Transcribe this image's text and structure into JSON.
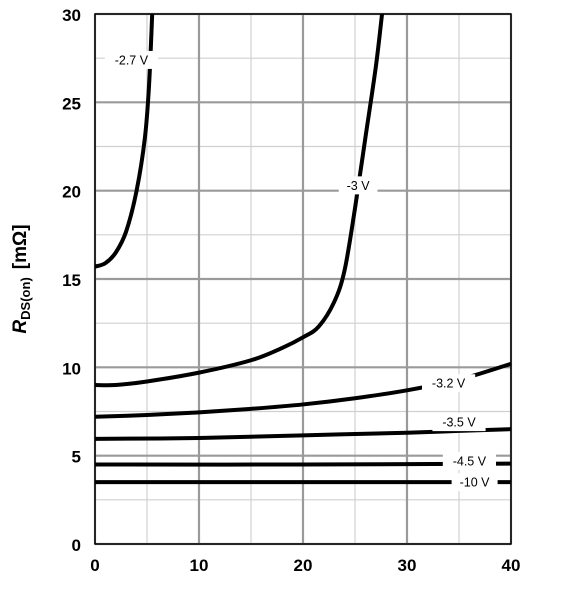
{
  "chart_data": {
    "type": "line",
    "title": "",
    "xlabel": "",
    "ylabel": {
      "main": "R",
      "subscript": "DS(on)",
      "unit": "[mΩ]"
    },
    "xlim": [
      0,
      40
    ],
    "ylim": [
      0,
      30
    ],
    "x_ticks": [
      0,
      10,
      20,
      30,
      40
    ],
    "y_ticks": [
      0,
      5,
      10,
      15,
      20,
      25,
      30
    ],
    "x_minor_step": 5,
    "y_minor_step": 2.5,
    "grid": true,
    "legend": "inline labels",
    "line_color": "#000000",
    "grid_major_color": "#9a9a9a",
    "grid_minor_color": "#d0d0d0",
    "series": [
      {
        "name": "-2.7 V",
        "label_at": [
          3.5,
          27.4
        ],
        "points": [
          [
            0,
            15.7
          ],
          [
            1,
            15.9
          ],
          [
            2,
            16.5
          ],
          [
            3,
            17.7
          ],
          [
            4,
            20.0
          ],
          [
            4.8,
            23.0
          ],
          [
            5.2,
            26.0
          ],
          [
            5.5,
            30.0
          ]
        ]
      },
      {
        "name": "-3 V",
        "label_at": [
          25.3,
          20.3
        ],
        "points": [
          [
            0,
            9.0
          ],
          [
            2,
            9.0
          ],
          [
            5,
            9.2
          ],
          [
            10,
            9.7
          ],
          [
            15,
            10.4
          ],
          [
            18,
            11.1
          ],
          [
            20,
            11.7
          ],
          [
            21.5,
            12.3
          ],
          [
            23,
            13.7
          ],
          [
            24,
            15.5
          ],
          [
            25,
            19.0
          ],
          [
            26,
            23.0
          ],
          [
            27,
            27.0
          ],
          [
            27.6,
            30.0
          ]
        ]
      },
      {
        "name": "-3.2 V",
        "label_at": [
          34,
          9.1
        ],
        "points": [
          [
            0,
            7.2
          ],
          [
            5,
            7.3
          ],
          [
            10,
            7.45
          ],
          [
            15,
            7.65
          ],
          [
            20,
            7.9
          ],
          [
            25,
            8.25
          ],
          [
            30,
            8.7
          ],
          [
            35,
            9.3
          ],
          [
            40,
            10.2
          ]
        ]
      },
      {
        "name": "-3.5 V",
        "label_at": [
          35,
          6.9
        ],
        "points": [
          [
            0,
            5.95
          ],
          [
            10,
            6.0
          ],
          [
            20,
            6.15
          ],
          [
            30,
            6.3
          ],
          [
            35,
            6.4
          ],
          [
            40,
            6.5
          ]
        ]
      },
      {
        "name": "-4.5 V",
        "label_at": [
          36,
          4.7
        ],
        "points": [
          [
            0,
            4.5
          ],
          [
            20,
            4.5
          ],
          [
            40,
            4.55
          ]
        ]
      },
      {
        "name": "-10 V",
        "label_at": [
          36.5,
          3.5
        ],
        "points": [
          [
            0,
            3.5
          ],
          [
            40,
            3.5
          ]
        ]
      }
    ]
  }
}
